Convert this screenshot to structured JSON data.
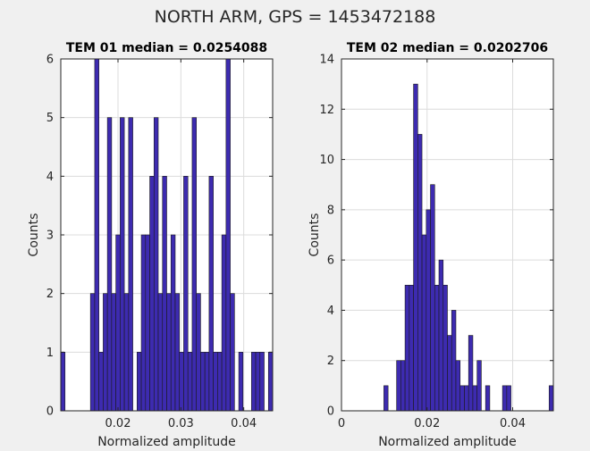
{
  "figure": {
    "title": "NORTH ARM, GPS = 1453472188"
  },
  "chart_data": [
    {
      "type": "bar",
      "title": "TEM 01 median = 0.0254088",
      "xlabel": "Normalized amplitude",
      "ylabel": "Counts",
      "xlim": [
        0.0109,
        0.0446
      ],
      "ylim": [
        0,
        6
      ],
      "xticks": [
        0.02,
        0.03,
        0.04
      ],
      "xtick_labels": [
        "0.02",
        "0.03",
        "0.04"
      ],
      "yticks": [
        0,
        1,
        2,
        3,
        4,
        5,
        6
      ],
      "ytick_labels": [
        "0",
        "1",
        "2",
        "3",
        "4",
        "5",
        "6"
      ],
      "grid": true,
      "bin_edges_start": 0.0109,
      "bin_width": 0.000674,
      "values": [
        1,
        0,
        0,
        0,
        0,
        0,
        0,
        2,
        6,
        1,
        2,
        5,
        2,
        3,
        5,
        2,
        5,
        0,
        1,
        3,
        3,
        4,
        5,
        2,
        4,
        2,
        3,
        2,
        1,
        4,
        1,
        5,
        2,
        1,
        1,
        4,
        1,
        1,
        3,
        6,
        2,
        0,
        1,
        0,
        0,
        1,
        1,
        1,
        0,
        1
      ]
    },
    {
      "type": "bar",
      "title": "TEM 02 median = 0.0202706",
      "xlabel": "Normalized amplitude",
      "ylabel": "Counts",
      "xlim": [
        0,
        0.0495
      ],
      "ylim": [
        0,
        14
      ],
      "xticks": [
        0,
        0.02,
        0.04
      ],
      "xtick_labels": [
        "0",
        "0.02",
        "0.04"
      ],
      "yticks": [
        0,
        2,
        4,
        6,
        8,
        10,
        12,
        14
      ],
      "ytick_labels": [
        "0",
        "2",
        "4",
        "6",
        "8",
        "10",
        "12",
        "14"
      ],
      "grid": true,
      "bin_edges_start": 0,
      "bin_width": 0.00099,
      "values": [
        0,
        0,
        0,
        0,
        0,
        0,
        0,
        0,
        0,
        0,
        1,
        0,
        0,
        2,
        2,
        5,
        5,
        13,
        11,
        7,
        8,
        9,
        5,
        6,
        5,
        3,
        4,
        2,
        1,
        1,
        3,
        1,
        2,
        0,
        1,
        0,
        0,
        0,
        1,
        1,
        0,
        0,
        0,
        0,
        0,
        0,
        0,
        0,
        0,
        1
      ]
    }
  ]
}
